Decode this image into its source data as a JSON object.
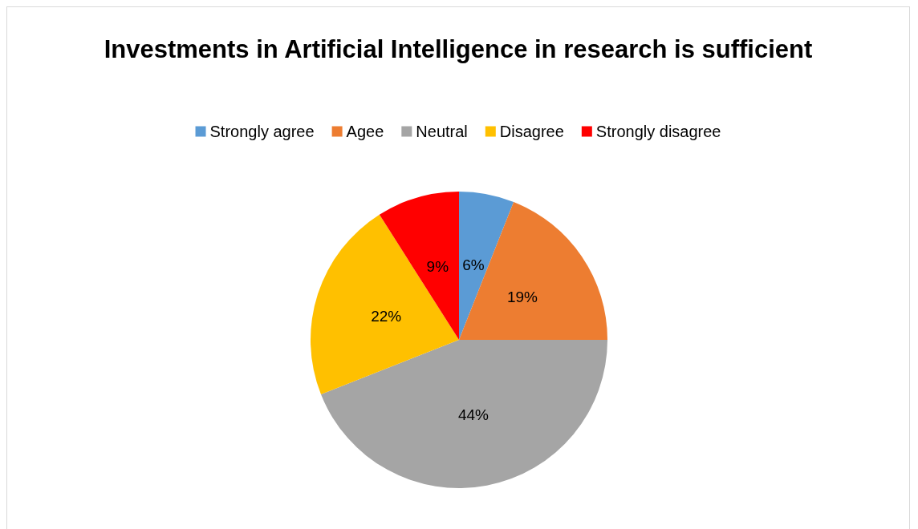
{
  "chart_data": {
    "type": "pie",
    "title": "Investments in Artificial Intelligence in research is sufficient",
    "categories": [
      "Strongly agree",
      "Agee",
      "Neutral",
      "Disagree",
      "Strongly disagree"
    ],
    "values": [
      6,
      19,
      44,
      22,
      9
    ],
    "value_labels": [
      "6%",
      "19%",
      "44%",
      "22%",
      "9%"
    ],
    "colors": [
      "#5b9bd5",
      "#ed7d31",
      "#a5a5a5",
      "#ffc000",
      "#ff0000"
    ],
    "legend": "top"
  }
}
